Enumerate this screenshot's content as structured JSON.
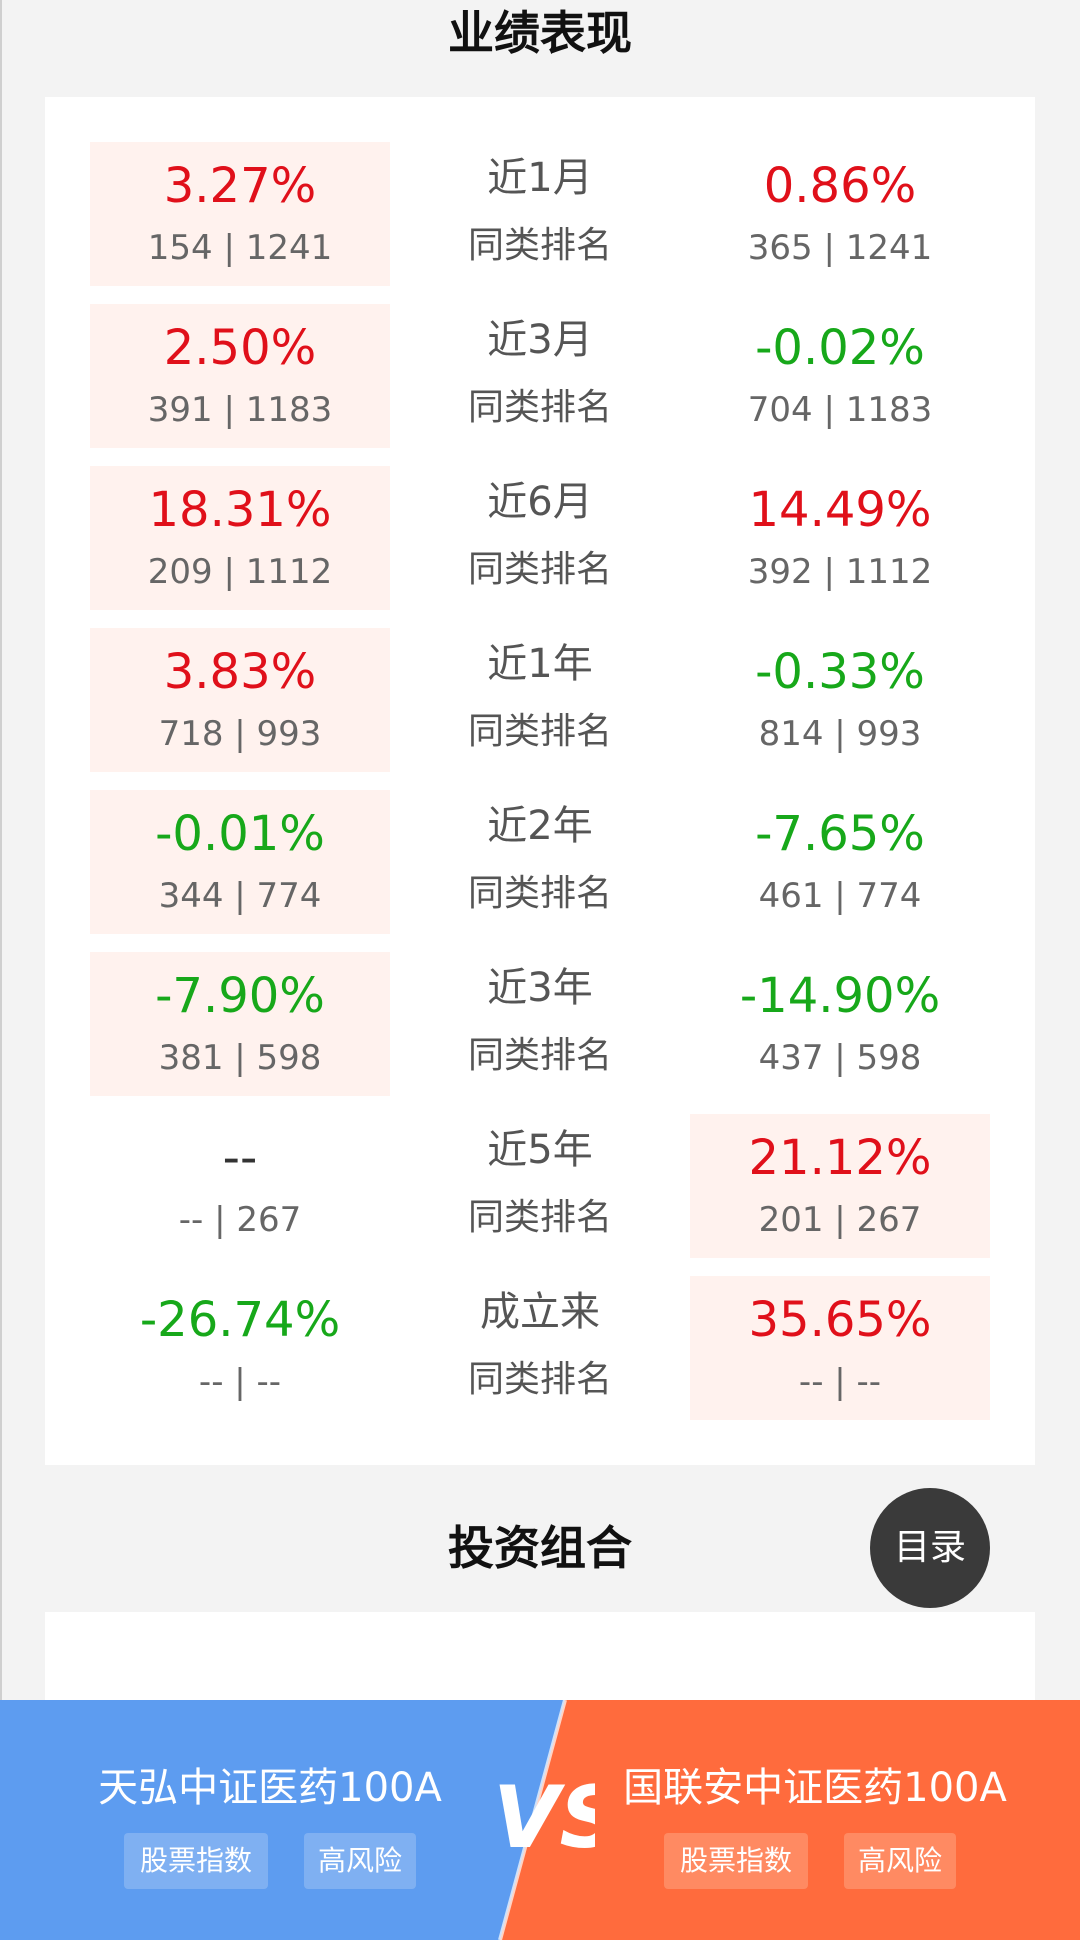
{
  "performance": {
    "title": "业绩表现",
    "rows": [
      {
        "period": "近1月",
        "rank_label": "同类排名",
        "left": {
          "pct": "3.27%",
          "rank": "154 | 1241",
          "tone": "red",
          "highlight": true
        },
        "right": {
          "pct": "0.86%",
          "rank": "365 | 1241",
          "tone": "red",
          "highlight": false
        }
      },
      {
        "period": "近3月",
        "rank_label": "同类排名",
        "left": {
          "pct": "2.50%",
          "rank": "391 | 1183",
          "tone": "red",
          "highlight": true
        },
        "right": {
          "pct": "-0.02%",
          "rank": "704 | 1183",
          "tone": "green",
          "highlight": false
        }
      },
      {
        "period": "近6月",
        "rank_label": "同类排名",
        "left": {
          "pct": "18.31%",
          "rank": "209 | 1112",
          "tone": "red",
          "highlight": true
        },
        "right": {
          "pct": "14.49%",
          "rank": "392 | 1112",
          "tone": "red",
          "highlight": false
        }
      },
      {
        "period": "近1年",
        "rank_label": "同类排名",
        "left": {
          "pct": "3.83%",
          "rank": "718 | 993",
          "tone": "red",
          "highlight": true
        },
        "right": {
          "pct": "-0.33%",
          "rank": "814 | 993",
          "tone": "green",
          "highlight": false
        }
      },
      {
        "period": "近2年",
        "rank_label": "同类排名",
        "left": {
          "pct": "-0.01%",
          "rank": "344 | 774",
          "tone": "green",
          "highlight": true
        },
        "right": {
          "pct": "-7.65%",
          "rank": "461 | 774",
          "tone": "green",
          "highlight": false
        }
      },
      {
        "period": "近3年",
        "rank_label": "同类排名",
        "left": {
          "pct": "-7.90%",
          "rank": "381 | 598",
          "tone": "green",
          "highlight": true
        },
        "right": {
          "pct": "-14.90%",
          "rank": "437 | 598",
          "tone": "green",
          "highlight": false
        }
      },
      {
        "period": "近5年",
        "rank_label": "同类排名",
        "left": {
          "pct": "--",
          "rank": "-- | 267",
          "tone": "dark",
          "highlight": false
        },
        "right": {
          "pct": "21.12%",
          "rank": "201 | 267",
          "tone": "red",
          "highlight": true
        }
      },
      {
        "period": "成立来",
        "rank_label": "同类排名",
        "left": {
          "pct": "-26.74%",
          "rank": "-- | --",
          "tone": "green",
          "highlight": false
        },
        "right": {
          "pct": "35.65%",
          "rank": "-- | --",
          "tone": "red",
          "highlight": true
        }
      }
    ]
  },
  "portfolio": {
    "title": "投资组合"
  },
  "toc_button": {
    "label": "目录"
  },
  "compare": {
    "fund_a": {
      "name": "天弘中证医药100A",
      "tags": [
        "股票指数",
        "高风险"
      ]
    },
    "fund_b": {
      "name": "国联安中证医药100A",
      "tags": [
        "股票指数",
        "高风险"
      ]
    },
    "vs_label": "VS",
    "colors": {
      "a": "#5d9cf0",
      "b": "#ff6b3d"
    }
  },
  "colors": {
    "up": "#e0101a",
    "down": "#17a81a",
    "highlight_bg": "#fff2ee"
  }
}
